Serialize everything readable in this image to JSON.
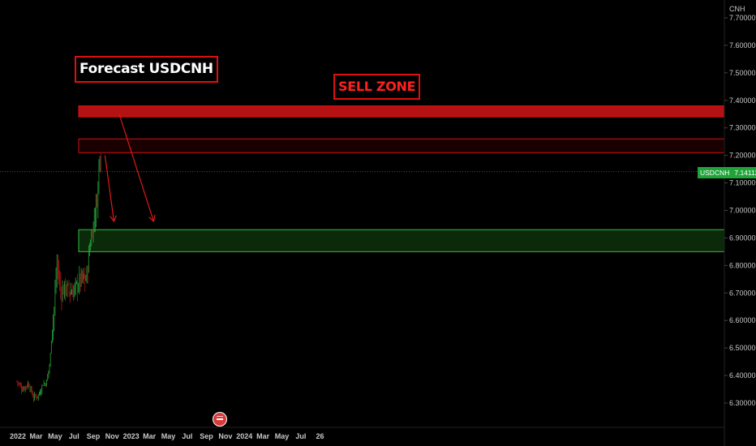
{
  "title": "Forecast USDCNH",
  "annotation": "SELL ZONE",
  "symbol": "USDCNH",
  "last_price": "7.14112",
  "unit": "CNH",
  "colors": {
    "background": "#000000",
    "up_candle": "#26a53a",
    "down_candle": "#b01818",
    "sell_zone": "#c81414",
    "buy_zone": "#0a2a0a",
    "price_tag": "#1fa43a",
    "annotation_border": "#e01010"
  },
  "chart_data": {
    "type": "candlestick",
    "symbol": "USDCNH",
    "y_unit": "CNH",
    "ylim": [
      6.25,
      7.72
    ],
    "y_ticks": [
      "7.70000",
      "7.60000",
      "7.50000",
      "7.40000",
      "7.30000",
      "7.20000",
      "7.10000",
      "7.00000",
      "6.90000",
      "6.80000",
      "6.70000",
      "6.60000",
      "6.50000",
      "6.40000",
      "6.30000"
    ],
    "x_ticks": [
      "2022",
      "Mar",
      "May",
      "Jul",
      "Sep",
      "Nov",
      "2023",
      "Mar",
      "May",
      "Jul",
      "Sep",
      "Nov",
      "2024",
      "Mar",
      "May",
      "Jul",
      "26"
    ],
    "last_price": 7.14112,
    "price_path": [
      [
        "2022-01-03",
        6.38
      ],
      [
        "2022-01-20",
        6.35
      ],
      [
        "2022-02-10",
        6.37
      ],
      [
        "2022-02-25",
        6.32
      ],
      [
        "2022-03-15",
        6.33
      ],
      [
        "2022-03-28",
        6.37
      ],
      [
        "2022-04-08",
        6.37
      ],
      [
        "2022-04-20",
        6.45
      ],
      [
        "2022-04-25",
        6.55
      ],
      [
        "2022-05-02",
        6.62
      ],
      [
        "2022-05-12",
        6.81
      ],
      [
        "2022-05-25",
        6.7
      ],
      [
        "2022-06-08",
        6.72
      ],
      [
        "2022-06-28",
        6.7
      ],
      [
        "2022-07-12",
        6.72
      ],
      [
        "2022-07-28",
        6.75
      ],
      [
        "2022-08-15",
        6.75
      ],
      [
        "2022-08-25",
        6.86
      ],
      [
        "2022-09-08",
        6.96
      ],
      [
        "2022-09-20",
        7.05
      ],
      [
        "2022-09-28",
        7.23
      ],
      [
        "2022-10-03",
        7.14
      ]
    ],
    "zones": [
      {
        "name": "SELL ZONE",
        "type": "resistance",
        "from": 7.34,
        "to": 7.38
      },
      {
        "type": "resistance",
        "from": 7.21,
        "to": 7.26
      },
      {
        "type": "support",
        "from": 6.85,
        "to": 6.93
      }
    ],
    "forecast_arrows": [
      {
        "from": [
          "2022-10-14",
          7.2
        ],
        "to": [
          "2022-11-12",
          6.96
        ]
      },
      {
        "from": [
          "2022-11-29",
          7.35
        ],
        "to": [
          "2023-03-20",
          6.96
        ]
      }
    ]
  }
}
